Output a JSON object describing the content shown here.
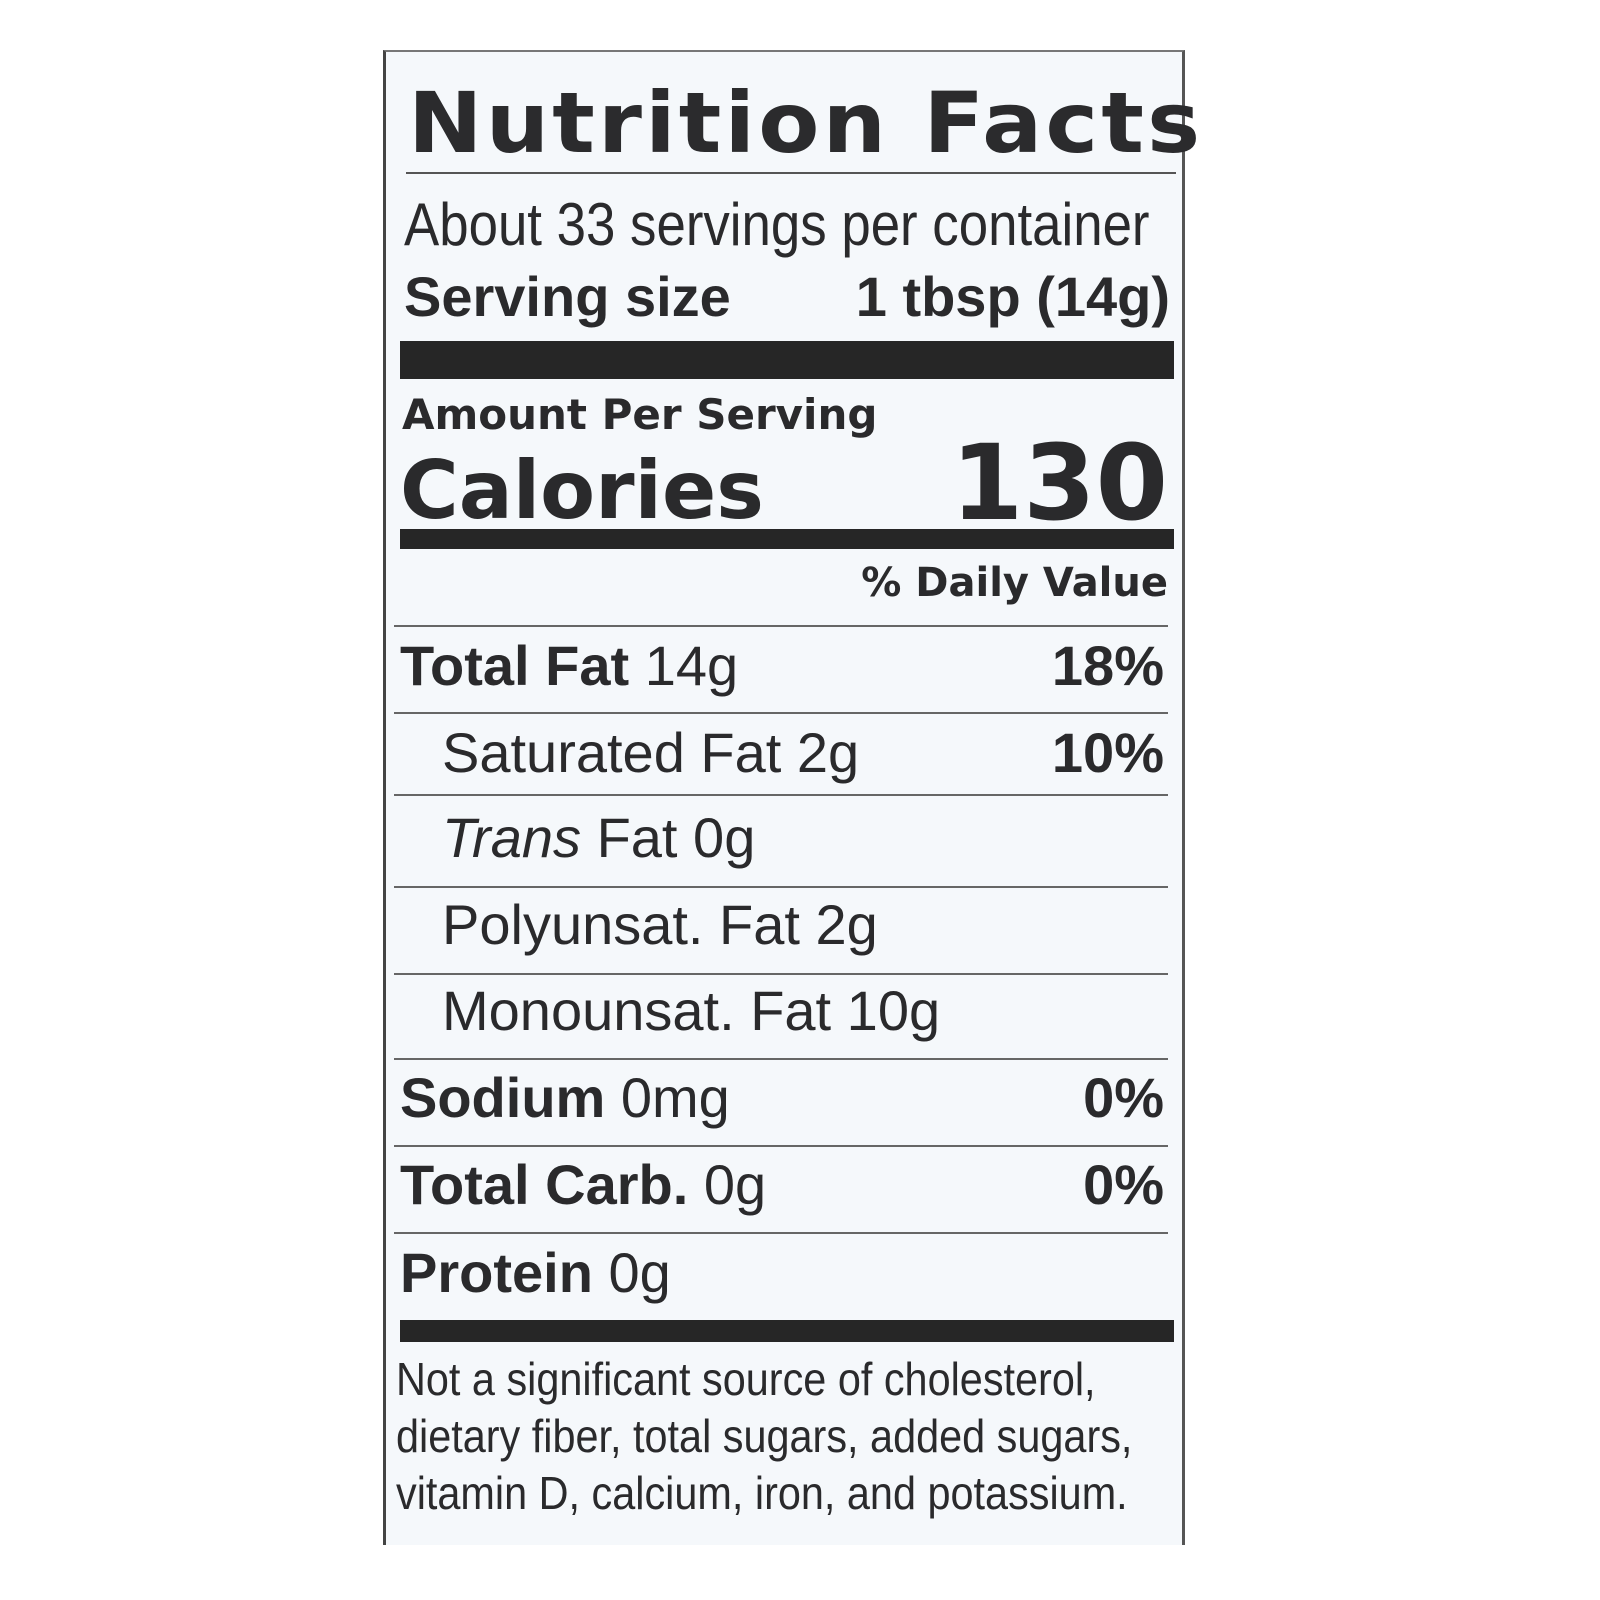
{
  "title": "Nutrition Facts",
  "servings_per_container": "About 33 servings per container",
  "serving_size": {
    "label": "Serving size",
    "value": "1 tbsp (14g)"
  },
  "amount_per_serving": "Amount Per Serving",
  "calories": {
    "label": "Calories",
    "value": "130"
  },
  "daily_value_header": "% Daily Value",
  "nutrients": [
    {
      "name": "Total Fat",
      "amount": "14g",
      "dv": "18%",
      "bold": true,
      "indent": false
    },
    {
      "name": "Saturated Fat",
      "amount": "2g",
      "dv": "10%",
      "bold": false,
      "indent": true
    },
    {
      "name": "Trans",
      "name_suffix": "Fat",
      "amount": "0g",
      "dv": "",
      "bold": false,
      "indent": true,
      "italic_name": true
    },
    {
      "name": "Polyunsat. Fat",
      "amount": "2g",
      "dv": "",
      "bold": false,
      "indent": true
    },
    {
      "name": "Monounsat. Fat",
      "amount": "10g",
      "dv": "",
      "bold": false,
      "indent": true
    },
    {
      "name": "Sodium",
      "amount": "0mg",
      "dv": "0%",
      "bold": true,
      "indent": false
    },
    {
      "name": "Total Carb.",
      "amount": "0g",
      "dv": "0%",
      "bold": true,
      "indent": false
    },
    {
      "name": "Protein",
      "amount": "0g",
      "dv": "",
      "bold": true,
      "indent": false
    }
  ],
  "footnote_lines": [
    "Not a significant source of cholesterol,",
    "dietary fiber, total sugars, added sugars,",
    "vitamin D, calcium, iron, and potassium."
  ]
}
